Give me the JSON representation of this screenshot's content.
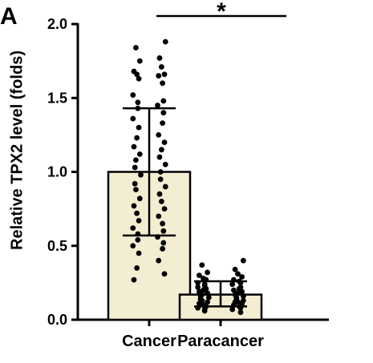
{
  "panel_label": "A",
  "chart_data": {
    "type": "bar",
    "ylabel": "Relative TPX2 level (folds)",
    "xlabel": "",
    "ylim": [
      0,
      2.0
    ],
    "yticks": [
      "0.0",
      "0.5",
      "1.0",
      "1.5",
      "2.0"
    ],
    "categories": [
      "Cancer",
      "Paracancer"
    ],
    "values": [
      1.0,
      0.17
    ],
    "error_bars": [
      {
        "lower": 0.57,
        "upper": 1.43
      },
      {
        "lower": 0.09,
        "upper": 0.26
      }
    ],
    "bar_color": "#f3edd2",
    "significance": {
      "symbol": "*",
      "between": [
        "Cancer",
        "Paracancer"
      ]
    },
    "points": [
      [
        1.88,
        1.84,
        1.77,
        1.75,
        1.71,
        1.68,
        1.66,
        1.66,
        1.65,
        1.63,
        1.6,
        1.52,
        1.48,
        1.47,
        1.45,
        1.43,
        1.4,
        1.36,
        1.33,
        1.3,
        1.25,
        1.23,
        1.2,
        1.17,
        1.15,
        1.12,
        1.1,
        1.08,
        1.05,
        1.03,
        1.0,
        0.98,
        0.95,
        0.92,
        0.9,
        0.88,
        0.85,
        0.82,
        0.8,
        0.77,
        0.75,
        0.72,
        0.7,
        0.67,
        0.65,
        0.62,
        0.6,
        0.58,
        0.56,
        0.54,
        0.52,
        0.5,
        0.48,
        0.45,
        0.4,
        0.35,
        0.31,
        0.27
      ],
      [
        0.4,
        0.37,
        0.34,
        0.32,
        0.31,
        0.3,
        0.29,
        0.28,
        0.27,
        0.27,
        0.26,
        0.25,
        0.25,
        0.24,
        0.24,
        0.23,
        0.22,
        0.22,
        0.21,
        0.21,
        0.2,
        0.2,
        0.19,
        0.19,
        0.18,
        0.18,
        0.17,
        0.17,
        0.16,
        0.16,
        0.15,
        0.15,
        0.14,
        0.14,
        0.13,
        0.13,
        0.12,
        0.12,
        0.12,
        0.11,
        0.11,
        0.1,
        0.1,
        0.09,
        0.09,
        0.08,
        0.08,
        0.07,
        0.07,
        0.06,
        0.05
      ]
    ]
  }
}
